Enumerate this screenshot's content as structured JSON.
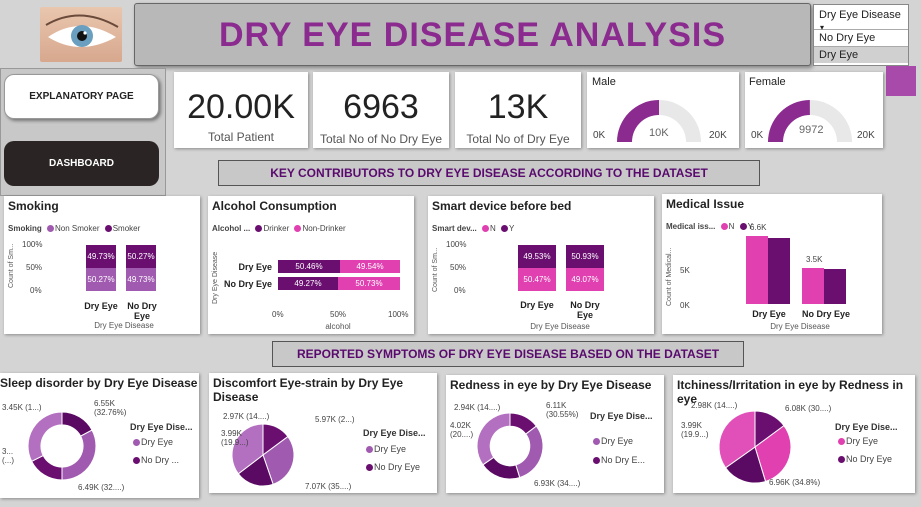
{
  "header": {
    "title": "DRY EYE DISEASE ANALYSIS"
  },
  "slicer": {
    "title": "Dry Eye Disease",
    "options": [
      "No Dry Eye",
      "Dry Eye"
    ],
    "selected": "Dry Eye"
  },
  "nav": {
    "explanatory": "EXPLANATORY PAGE",
    "dashboard": "DASHBOARD"
  },
  "kpis": [
    {
      "value": "20.00K",
      "label": "Total Patient"
    },
    {
      "value": "6963",
      "label": "Total No of No Dry Eye"
    },
    {
      "value": "13K",
      "label": "Total No of Dry Eye"
    }
  ],
  "gauges": [
    {
      "title": "Male",
      "value": "10K",
      "min": "0K",
      "max": "20K",
      "fraction": 0.5
    },
    {
      "title": "Female",
      "value": "9972",
      "min": "0K",
      "max": "20K",
      "fraction": 0.4986
    }
  ],
  "sections": {
    "contributors": "KEY CONTRIBUTORS TO DRY EYE DISEASE ACCORDING TO THE DATASET",
    "symptoms": "REPORTED SYMPTOMS OF DRY EYE DISEASE BASED ON THE DATASET"
  },
  "colors": {
    "dark": "#6a0f70",
    "mid": "#a05ab0",
    "pink": "#e040b0",
    "accent": "#8b2a8f"
  },
  "smoking": {
    "title": "Smoking",
    "legend_title": "Smoking",
    "legend": [
      "Non Smoker",
      "Smoker"
    ],
    "y_ticks": [
      "100%",
      "50%",
      "0%"
    ],
    "y_label": "Count of Sm...",
    "x_label": "Dry Eye Disease",
    "categories": [
      "Dry Eye",
      "No Dry Eye"
    ],
    "top": [
      "49.73%",
      "50.27%"
    ],
    "bottom": [
      "50.27%",
      "49.73%"
    ]
  },
  "alcohol": {
    "title": "Alcohol Consumption",
    "legend_title": "Alcohol ...",
    "legend": [
      "Drinker",
      "Non-Drinker"
    ],
    "y_label": "Dry Eye Disease",
    "x_label": "alcohol",
    "x_ticks": [
      "0%",
      "50%",
      "100%"
    ],
    "categories": [
      "Dry Eye",
      "No Dry Eye"
    ],
    "left": [
      "50.46%",
      "49.27%"
    ],
    "right": [
      "49.54%",
      "50.73%"
    ]
  },
  "smart": {
    "title": "Smart device before bed",
    "legend_title": "Smart dev...",
    "legend": [
      "N",
      "Y"
    ],
    "y_ticks": [
      "100%",
      "50%",
      "0%"
    ],
    "y_label": "Count of Sm...",
    "x_label": "Dry Eye Disease",
    "categories": [
      "Dry Eye",
      "No Dry Eye"
    ],
    "top": [
      "49.53%",
      "50.93%"
    ],
    "bottom": [
      "50.47%",
      "49.07%"
    ]
  },
  "medical": {
    "title": "Medical Issue",
    "legend_title": "Medical iss...",
    "legend": [
      "N",
      "Y"
    ],
    "y_ticks": [
      "5K",
      "0K"
    ],
    "y_label": "Count of Medical...",
    "x_label": "Dry Eye Disease",
    "categories": [
      "Dry Eye",
      "No Dry Eye"
    ],
    "n": [
      6.6,
      3.5
    ],
    "y": [
      6.4,
      3.4
    ],
    "n_labels": [
      "6.6K",
      "3.5K"
    ],
    "ymax": 8
  },
  "chart_data": [
    {
      "type": "bar",
      "title": "Smoking",
      "categories": [
        "Dry Eye",
        "No Dry Eye"
      ],
      "series": [
        {
          "name": "Non Smoker",
          "values": [
            50.27,
            49.73
          ]
        },
        {
          "name": "Smoker",
          "values": [
            49.73,
            50.27
          ]
        }
      ]
    },
    {
      "type": "bar",
      "title": "Alcohol Consumption",
      "categories": [
        "Dry Eye",
        "No Dry Eye"
      ],
      "series": [
        {
          "name": "Drinker",
          "values": [
            50.46,
            49.27
          ]
        },
        {
          "name": "Non-Drinker",
          "values": [
            49.54,
            50.73
          ]
        }
      ]
    },
    {
      "type": "bar",
      "title": "Smart device before bed",
      "categories": [
        "Dry Eye",
        "No Dry Eye"
      ],
      "series": [
        {
          "name": "N",
          "values": [
            50.47,
            49.07
          ]
        },
        {
          "name": "Y",
          "values": [
            49.53,
            50.93
          ]
        }
      ]
    },
    {
      "type": "bar",
      "title": "Medical Issue",
      "categories": [
        "Dry Eye",
        "No Dry Eye"
      ],
      "series": [
        {
          "name": "N",
          "values": [
            6.6,
            3.5
          ]
        },
        {
          "name": "Y",
          "values": [
            6.4,
            3.4
          ]
        }
      ]
    }
  ],
  "donuts": [
    {
      "title": "Sleep disorder by Dry Eye Disease",
      "legend_title": "Dry Eye Dise...",
      "legend": [
        "Dry Eye",
        "No Dry ..."
      ],
      "labels": [
        "3.45K (1...)",
        "6.55K (32.76%)",
        "3... (...)",
        "6.49K (32....)"
      ],
      "values": [
        3.45,
        6.55,
        3.51,
        6.49
      ],
      "colors": [
        "#5a0a62",
        "#a05ab0",
        "#6a0f70",
        "#b370c0"
      ],
      "hole": 0.62
    },
    {
      "title": "Discomfort Eye-strain by Dry Eye Disease",
      "legend_title": "Dry Eye Dise...",
      "legend": [
        "Dry Eye",
        "No Dry Eye"
      ],
      "labels": [
        "2.97K (14....)",
        "5.97K (2...)",
        "3.99K (19.9...)",
        "7.07K (35....)"
      ],
      "values": [
        2.97,
        5.97,
        3.99,
        7.07
      ],
      "colors": [
        "#6a0f70",
        "#a05ab0",
        "#5a0a62",
        "#b370c0"
      ],
      "hole": 0
    },
    {
      "title": "Redness in eye by Dry Eye Disease",
      "legend_title": "Dry Eye Dise...",
      "legend": [
        "Dry Eye",
        "No Dry E..."
      ],
      "labels": [
        "2.94K (14....)",
        "6.11K (30.55%)",
        "4.02K (20....)",
        "6.93K (34....)"
      ],
      "values": [
        2.94,
        6.11,
        4.02,
        6.93
      ],
      "colors": [
        "#6a0f70",
        "#a05ab0",
        "#5a0a62",
        "#b370c0"
      ],
      "hole": 0.6
    },
    {
      "title": "Itchiness/Irritation in eye by Redness in eye",
      "legend_title": "Dry Eye Dise...",
      "legend": [
        "Dry Eye",
        "No Dry Eye"
      ],
      "labels": [
        "2.98K (14....)",
        "6.08K (30....)",
        "3.99K (19.9...)",
        "6.96K (34.8%)"
      ],
      "values": [
        2.98,
        6.08,
        3.99,
        6.96
      ],
      "colors": [
        "#6a0f70",
        "#e040b0",
        "#5a0a62",
        "#e050b8"
      ],
      "hole": 0
    }
  ]
}
